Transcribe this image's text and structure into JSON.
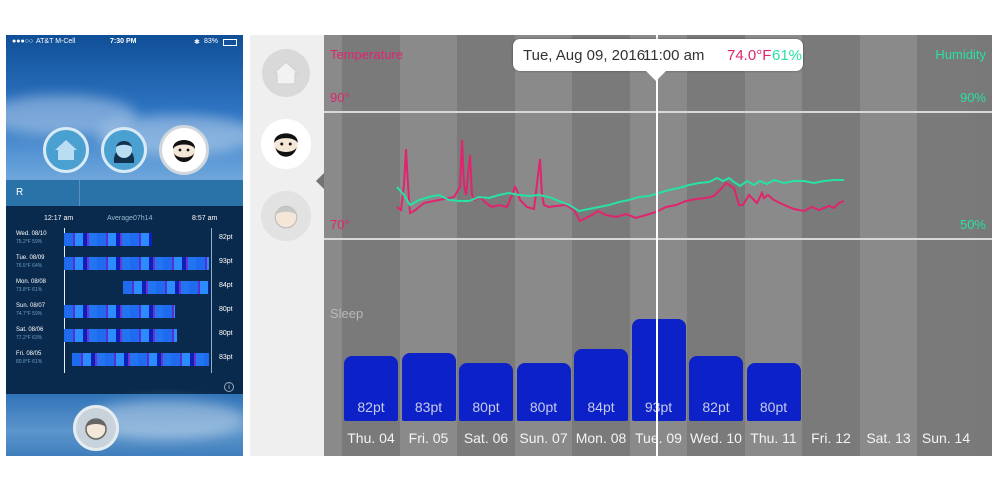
{
  "phone": {
    "status": {
      "carrier": "AT&T M-Cell",
      "time": "7:30 PM",
      "battery": "83%"
    },
    "profiles": [
      {
        "icon": "home-icon"
      },
      {
        "icon": "woman-avatar-icon"
      },
      {
        "icon": "man-avatar-icon",
        "selected": true
      }
    ],
    "tab_label": "R",
    "time_axis": {
      "start": "12:17 am",
      "average_label": "Average:",
      "average": "07h14",
      "end": "8:57 am"
    },
    "rows": [
      {
        "date": "Wed. 08/10",
        "detail": "75.2°F 59%",
        "points": "82pt",
        "start": 0.3,
        "end": 0.72
      },
      {
        "date": "Tue. 08/09",
        "detail": "76.5°F 64%",
        "points": "93pt",
        "start": 0.3,
        "end": 0.99
      },
      {
        "date": "Mon. 08/08",
        "detail": "73.8°F 61%",
        "points": "84pt",
        "start": 0.58,
        "end": 0.99
      },
      {
        "date": "Sun. 08/07",
        "detail": "74.7°F 59%",
        "points": "80pt",
        "start": 0.3,
        "end": 0.83
      },
      {
        "date": "Sat. 08/06",
        "detail": "77.2°F 63%",
        "points": "80pt",
        "start": 0.3,
        "end": 0.84
      },
      {
        "date": "Fri. 08/05",
        "detail": "80.8°F 61%",
        "points": "83pt",
        "start": 0.34,
        "end": 0.99
      }
    ],
    "info_icon": "i",
    "bottom_icon": "child-avatar-icon"
  },
  "dashboard": {
    "sidebar": [
      {
        "icon": "home-icon"
      },
      {
        "icon": "man-avatar-icon",
        "selected": true
      },
      {
        "icon": "child-avatar-icon"
      }
    ],
    "temperature_label": "Temperature",
    "humidity_label": "Humidity",
    "temp_high": "90°",
    "temp_low": "70°",
    "hum_high": "90%",
    "hum_low": "50%",
    "sleep_label": "Sleep",
    "colors": {
      "temperature": "#e0246e",
      "humidity": "#27e1a6",
      "sleep_bar": "#0c21c8"
    },
    "tooltip": {
      "date": "Tue, Aug 09, 2016",
      "time": "11:00 am",
      "temperature": "74.0°F",
      "humidity": "61%"
    },
    "days": [
      "Thu. 04",
      "Fri. 05",
      "Sat. 06",
      "Sun. 07",
      "Mon. 08",
      "Tue. 09",
      "Wed. 10",
      "Thu. 11",
      "Fri. 12",
      "Sat. 13",
      "Sun. 14"
    ],
    "sleep_scores": [
      {
        "day": "Thu. 04",
        "value": 82,
        "label": "82pt"
      },
      {
        "day": "Fri. 05",
        "value": 83,
        "label": "83pt"
      },
      {
        "day": "Sat. 06",
        "value": 80,
        "label": "80pt"
      },
      {
        "day": "Sun. 07",
        "value": 80,
        "label": "80pt"
      },
      {
        "day": "Mon. 08",
        "value": 84,
        "label": "84pt"
      },
      {
        "day": "Tue. 09",
        "value": 93,
        "label": "93pt"
      },
      {
        "day": "Wed. 10",
        "value": 82,
        "label": "82pt"
      },
      {
        "day": "Thu. 11",
        "value": 80,
        "label": "80pt"
      }
    ]
  }
}
